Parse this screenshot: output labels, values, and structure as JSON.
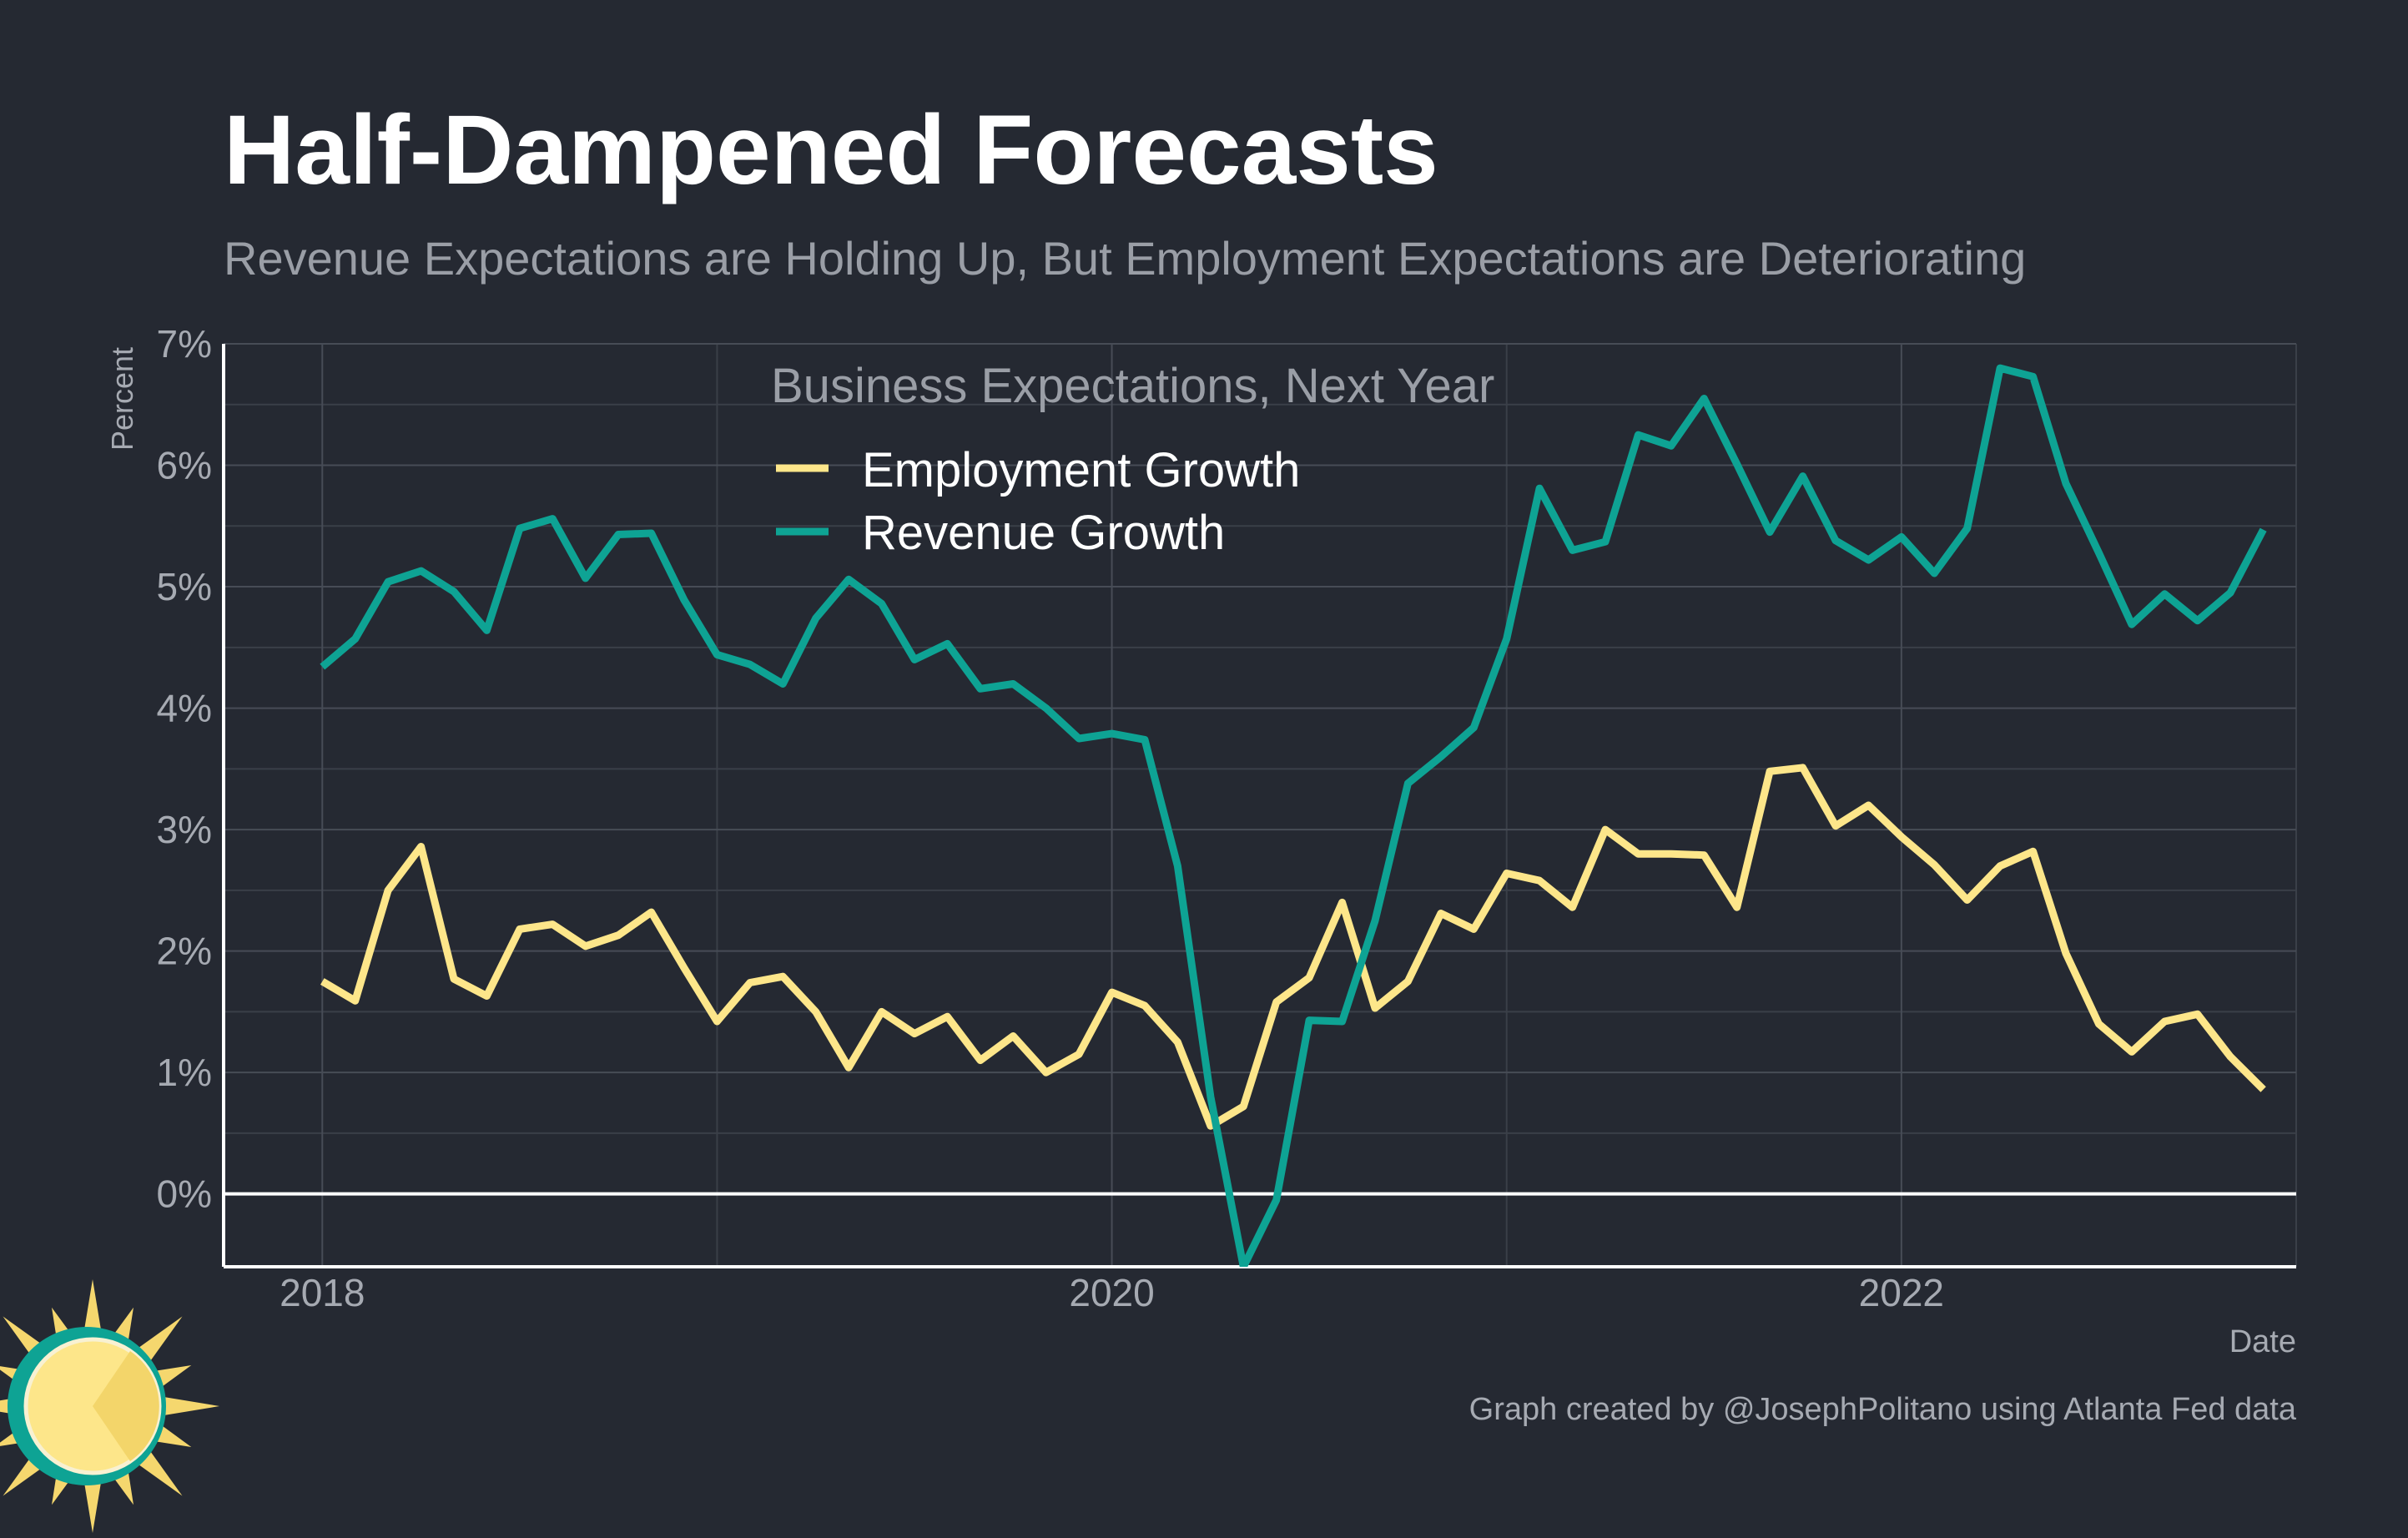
{
  "colors": {
    "background": "#252932",
    "grid_major": "#474c56",
    "grid_minor": "#3a3f48",
    "axis_line": "#ffffff",
    "zero_line": "#ffffff",
    "employment": "#fde68a",
    "revenue": "#0ea394",
    "logo_sun": "#f5d76e",
    "logo_ring": "#0ea394"
  },
  "header": {
    "title": "Half-Dampened Forecasts",
    "subtitle": "Revenue Expectations are Holding Up, But Employment Expectations are Deteriorating"
  },
  "caption": "Graph created by @JosephPolitano using Atlanta Fed data",
  "logo": {
    "icon": "sun-logo-icon"
  },
  "chart_data": {
    "type": "line",
    "title": "Half-Dampened Forecasts",
    "subtitle": "Revenue Expectations are Holding Up, But Employment Expectations are Deteriorating",
    "xlabel": "Date",
    "ylabel": "Percent",
    "legend_title": "Business Expectations, Next Year",
    "legend_position": "top-center",
    "grid": true,
    "x_unit": "decimal year",
    "xlim": [
      2017.75,
      2023.0
    ],
    "ylim": [
      -0.6,
      7.0
    ],
    "x_ticks": [
      {
        "value": 2018,
        "label": "2018"
      },
      {
        "value": 2020,
        "label": "2020"
      },
      {
        "value": 2022,
        "label": "2022"
      }
    ],
    "x_minor_ticks": [
      2019,
      2021,
      2023
    ],
    "y_ticks": [
      {
        "value": 0,
        "label": "0%"
      },
      {
        "value": 1,
        "label": "1%"
      },
      {
        "value": 2,
        "label": "2%"
      },
      {
        "value": 3,
        "label": "3%"
      },
      {
        "value": 4,
        "label": "4%"
      },
      {
        "value": 5,
        "label": "5%"
      },
      {
        "value": 6,
        "label": "6%"
      },
      {
        "value": 7,
        "label": "7%"
      }
    ],
    "y_minor_ticks": [
      0.5,
      1.5,
      2.5,
      3.5,
      4.5,
      5.5,
      6.5
    ],
    "x_start": "2018-01",
    "x_step_months": 1,
    "series": [
      {
        "name": "Employment Growth",
        "color": "#fde68a",
        "values": [
          1.75,
          1.59,
          2.5,
          2.86,
          1.77,
          1.63,
          2.18,
          2.22,
          2.04,
          2.13,
          2.32,
          1.86,
          1.42,
          1.74,
          1.79,
          1.5,
          1.04,
          1.5,
          1.32,
          1.46,
          1.1,
          1.3,
          1.0,
          1.15,
          1.66,
          1.55,
          1.25,
          0.56,
          0.72,
          1.58,
          1.78,
          2.4,
          1.53,
          1.75,
          2.31,
          2.18,
          2.64,
          2.58,
          2.36,
          3.0,
          2.8,
          2.8,
          2.79,
          2.36,
          3.48,
          3.51,
          3.03,
          3.2,
          2.94,
          2.71,
          2.42,
          2.7,
          2.82,
          1.98,
          1.4,
          1.17,
          1.42,
          1.48,
          1.13,
          0.86
        ]
      },
      {
        "name": "Revenue Growth",
        "color": "#0ea394",
        "values": [
          4.34,
          4.57,
          5.04,
          5.13,
          4.96,
          4.64,
          5.48,
          5.56,
          5.07,
          5.43,
          5.44,
          4.89,
          4.44,
          4.36,
          4.2,
          4.74,
          5.06,
          4.86,
          4.4,
          4.53,
          4.16,
          4.2,
          4.0,
          3.75,
          3.79,
          3.74,
          2.7,
          0.8,
          -0.6,
          -0.05,
          1.43,
          1.42,
          2.25,
          3.38,
          3.6,
          3.84,
          4.57,
          5.81,
          5.3,
          5.37,
          6.25,
          6.16,
          6.55,
          6.01,
          5.45,
          5.91,
          5.38,
          5.22,
          5.41,
          5.11,
          5.48,
          6.8,
          6.73,
          5.85,
          5.28,
          4.69,
          4.94,
          4.72,
          4.95,
          5.47
        ]
      }
    ]
  }
}
